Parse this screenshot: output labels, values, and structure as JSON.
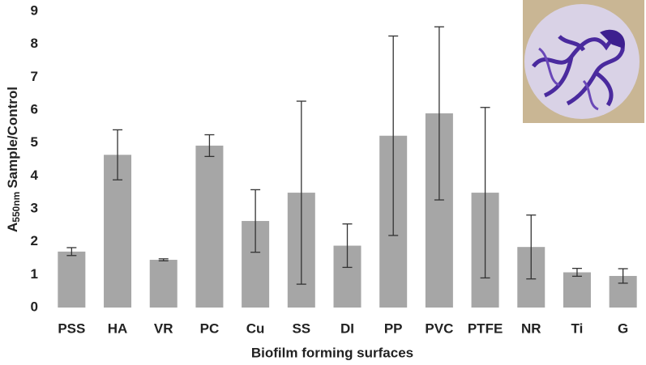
{
  "chart_data": {
    "type": "bar",
    "ylabel": {
      "main": "A",
      "subscript": "550nm",
      "rest": "Sample/Control"
    },
    "xlabel": "Biofilm forming surfaces",
    "categories": [
      "PSS",
      "HA",
      "VR",
      "PC",
      "Cu",
      "SS",
      "DI",
      "PP",
      "PVC",
      "PTFE",
      "NR",
      "Ti",
      "G"
    ],
    "values": [
      1.7,
      4.64,
      1.45,
      4.92,
      2.63,
      3.49,
      1.88,
      5.22,
      5.9,
      3.49,
      1.84,
      1.07,
      0.96
    ],
    "errors": [
      0.12,
      0.76,
      0.03,
      0.33,
      0.95,
      2.78,
      0.66,
      3.03,
      2.63,
      2.59,
      0.97,
      0.12,
      0.22
    ],
    "color": "#a6a6a6",
    "error_color": "#333333",
    "ylim": [
      0,
      9
    ],
    "yticks": [
      0,
      1,
      2,
      3,
      4,
      5,
      6,
      7,
      8,
      9
    ]
  }
}
